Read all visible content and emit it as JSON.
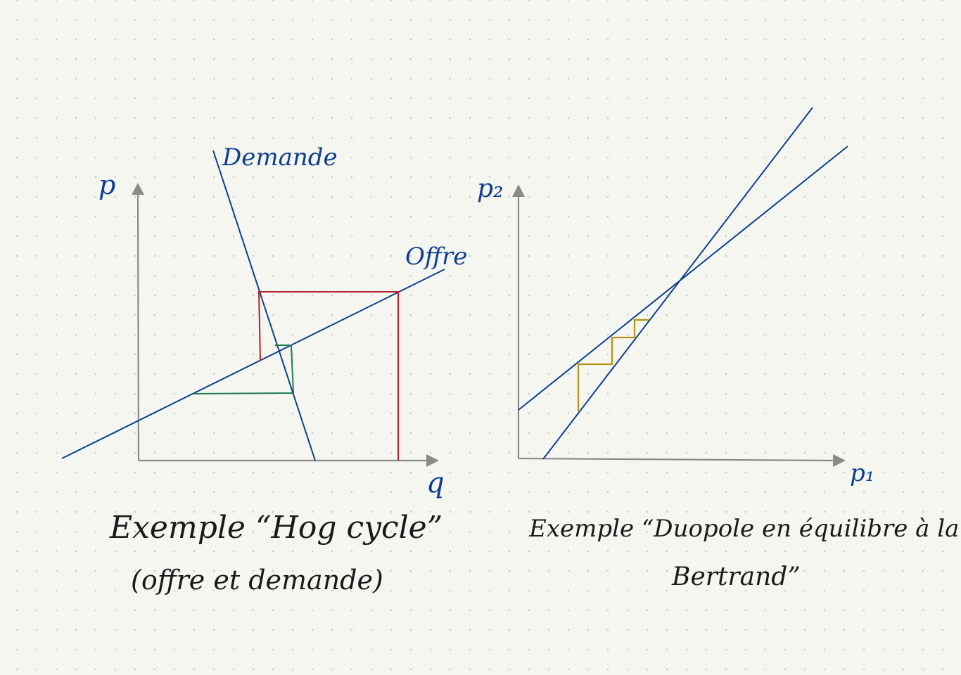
{
  "colors": {
    "background": "#f6f6f1",
    "axis": "#8a8a8a",
    "curve": "#0d3f8f",
    "label": "#0d3f8f",
    "red_path": "#b3222a",
    "green_path": "#1e7a4e",
    "gold_path": "#b59318",
    "caption": "#1a1a1a"
  },
  "left_diagram": {
    "y_label": "p",
    "x_label": "q",
    "demand_label": "Demande",
    "supply_label": "Offre",
    "caption_line1": "Exemple “Hog cycle”",
    "caption_line2": "(offre et demande)"
  },
  "right_diagram": {
    "y_label": "p₂",
    "x_label": "p₁",
    "caption_line1": "Exemple “Duopole en équilibre à la",
    "caption_line2": "Bertrand”"
  }
}
